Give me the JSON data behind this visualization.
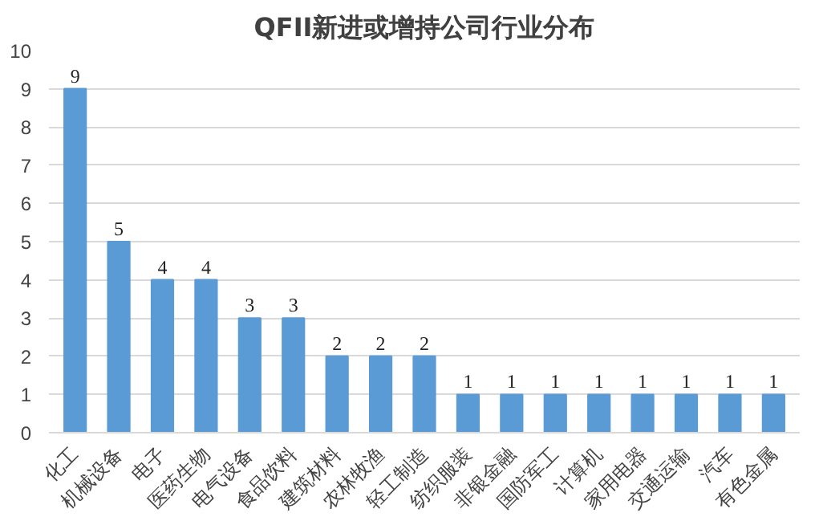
{
  "chart_data": {
    "type": "bar",
    "title": "QFII新进或增持公司行业分布",
    "categories": [
      "化工",
      "机械设备",
      "电子",
      "医药生物",
      "电气设备",
      "食品饮料",
      "建筑材料",
      "农林牧渔",
      "轻工制造",
      "纺织服装",
      "非银金融",
      "国防军工",
      "计算机",
      "家用电器",
      "交通运输",
      "汽车",
      "有色金属"
    ],
    "values": [
      9,
      5,
      4,
      4,
      3,
      3,
      2,
      2,
      2,
      1,
      1,
      1,
      1,
      1,
      1,
      1,
      1
    ],
    "color": "#5b9bd5",
    "ylim": [
      0,
      10
    ],
    "yticks": [
      0,
      1,
      2,
      3,
      4,
      5,
      6,
      7,
      8,
      9,
      10
    ],
    "grid": "y",
    "data_labels": true
  }
}
